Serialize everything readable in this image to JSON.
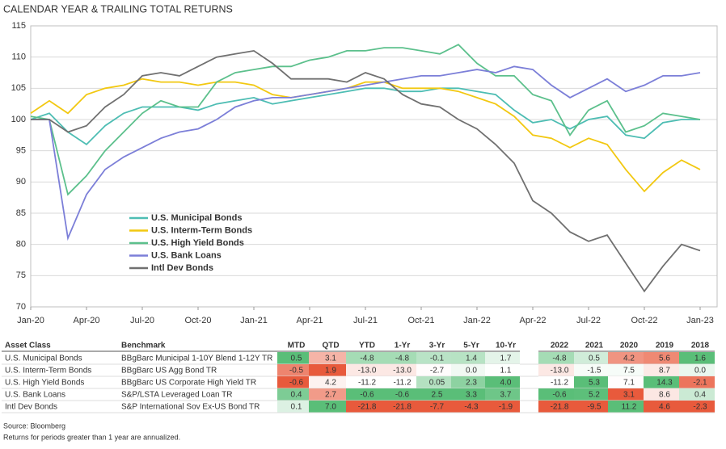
{
  "chart_data": {
    "type": "line",
    "title": "CALENDAR YEAR & TRAILING TOTAL RETURNS",
    "categories": [
      "Jan-20",
      null,
      null,
      "Apr-20",
      null,
      null,
      "Jul-20",
      null,
      null,
      "Oct-20",
      null,
      null,
      "Jan-21",
      null,
      null,
      "Apr-21",
      null,
      null,
      "Jul-21",
      null,
      null,
      "Oct-21",
      null,
      null,
      "Jan-22",
      null,
      null,
      "Apr-22",
      null,
      null,
      "Jul-22",
      null,
      null,
      "Oct-22",
      null,
      null,
      "Jan-23"
    ],
    "series": [
      {
        "name": "U.S.  Municipal Bonds",
        "color": "#4dbdb3",
        "values": [
          100,
          101,
          98,
          96,
          99,
          101,
          102,
          102,
          102,
          101.5,
          102.5,
          103,
          103.5,
          102.5,
          103,
          103.5,
          104,
          104.5,
          105,
          105,
          104.5,
          104.5,
          105,
          105,
          104.5,
          104,
          101.5,
          99.5,
          100,
          98.5,
          100,
          100.5,
          97.5,
          97,
          99.5,
          100,
          100
        ]
      },
      {
        "name": "U.S. Interm-Term Bonds",
        "color": "#f2c811",
        "values": [
          101,
          103,
          101,
          104,
          105,
          105.5,
          106.5,
          106,
          106,
          105.5,
          106,
          106,
          105.5,
          104,
          103.5,
          104,
          104.5,
          105,
          106,
          106,
          105,
          105,
          105,
          104.5,
          103.5,
          102.5,
          100.5,
          97.5,
          97,
          95.5,
          97,
          96,
          92,
          88.5,
          91.5,
          93.5,
          92
        ]
      },
      {
        "name": "U.S. High Yield Bonds",
        "color": "#5cc08c",
        "values": [
          100.5,
          100,
          88,
          91,
          95,
          98,
          101,
          103,
          102,
          102,
          106,
          107.5,
          108,
          108.5,
          108.5,
          109.5,
          110,
          111,
          111,
          111.5,
          111.5,
          111,
          110.5,
          112,
          109,
          107,
          107,
          104,
          103,
          97.5,
          101.5,
          103,
          98,
          99,
          101,
          100.5,
          100
        ]
      },
      {
        "name": "U.S. Bank Loans",
        "color": "#7c7fd8",
        "values": [
          100,
          100,
          81,
          88,
          92,
          94,
          95.5,
          97,
          98,
          98.5,
          100,
          102,
          103,
          103.5,
          103.5,
          104,
          104.5,
          105,
          105.5,
          106,
          106.5,
          107,
          107,
          107.5,
          108,
          107.5,
          108.5,
          108,
          105.5,
          103.5,
          105,
          106.5,
          104.5,
          105.5,
          107,
          107,
          107.5
        ]
      },
      {
        "name": "Intl Dev Bonds",
        "color": "#707070",
        "values": [
          100,
          100,
          98,
          99,
          102,
          104,
          107,
          107.5,
          107,
          108.5,
          110,
          110.5,
          111,
          109,
          106.5,
          106.5,
          106.5,
          106,
          107.5,
          106.5,
          104,
          102.5,
          102,
          100,
          98.5,
          96,
          93,
          87,
          85,
          82,
          80.5,
          81.5,
          77,
          72.5,
          76.5,
          80,
          79
        ]
      }
    ],
    "ylim": [
      70,
      115
    ],
    "yticks": [
      70,
      75,
      80,
      85,
      90,
      95,
      100,
      105,
      110,
      115
    ],
    "grid": true
  },
  "table": {
    "header": [
      "Asset Class",
      "Benchmark",
      "MTD",
      "QTD",
      "YTD",
      "1-Yr",
      "3-Yr",
      "5-Yr",
      "10-Yr",
      "2022",
      "2021",
      "2020",
      "2019",
      "2018"
    ],
    "rows": [
      [
        "U.S. Municipal Bonds",
        "BBgBarc Municipal 1-10Y Blend 1-12Y TR",
        "0.5",
        "3.1",
        "-4.8",
        "-4.8",
        "-0.1",
        "1.4",
        "1.7",
        "-4.8",
        "0.5",
        "4.2",
        "5.6",
        "1.6"
      ],
      [
        "U.S. Interm-Term Bonds",
        "BBgBarc US Agg Bond TR",
        "-0.5",
        "1.9",
        "-13.0",
        "-13.0",
        "-2.7",
        "0.0",
        "1.1",
        "-13.0",
        "-1.5",
        "7.5",
        "8.7",
        "0.0"
      ],
      [
        "U.S. High Yield Bonds",
        "BBgBarc US Corporate High Yield TR",
        "-0.6",
        "4.2",
        "-11.2",
        "-11.2",
        "0.05",
        "2.3",
        "4.0",
        "-11.2",
        "5.3",
        "7.1",
        "14.3",
        "-2.1"
      ],
      [
        "U.S. Bank Loans",
        "S&P/LSTA Leveraged Loan TR",
        "0.4",
        "2.7",
        "-0.6",
        "-0.6",
        "2.5",
        "3.3",
        "3.7",
        "-0.6",
        "5.2",
        "3.1",
        "8.6",
        "0.4"
      ],
      [
        "Intl Dev Bonds",
        "S&P International Sov Ex-US Bond TR",
        "0.1",
        "7.0",
        "-21.8",
        "-21.8",
        "-7.7",
        "-4.3",
        "-1.9",
        "-21.8",
        "-9.5",
        "11.2",
        "4.6",
        "-2.3"
      ]
    ]
  },
  "footer": {
    "source": "Source: Bloomberg",
    "note": "Returns for periods greater than 1 year are annualized."
  }
}
